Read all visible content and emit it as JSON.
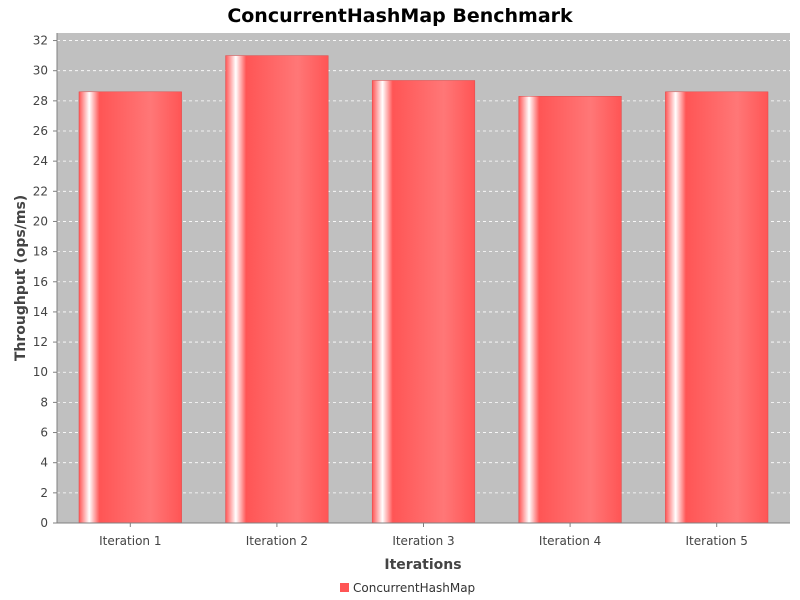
{
  "chart_data": {
    "type": "bar",
    "title": "ConcurrentHashMap Benchmark",
    "xlabel": "Iterations",
    "ylabel": "Throughput (ops/ms)",
    "categories": [
      "Iteration 1",
      "Iteration 2",
      "Iteration 3",
      "Iteration 4",
      "Iteration 5"
    ],
    "series": [
      {
        "name": "ConcurrentHashMap",
        "values": [
          28.6,
          31.0,
          29.35,
          28.3,
          28.6
        ],
        "color": "#ff5555"
      }
    ],
    "ylim": [
      0,
      32.5
    ],
    "yticks": [
      "0",
      "2",
      "4",
      "6",
      "8",
      "10",
      "12",
      "14",
      "16",
      "18",
      "20",
      "22",
      "24",
      "26",
      "28",
      "30",
      "32"
    ],
    "grid": true,
    "legend": "bottom-center",
    "plot_background": "#c0c0c0"
  }
}
